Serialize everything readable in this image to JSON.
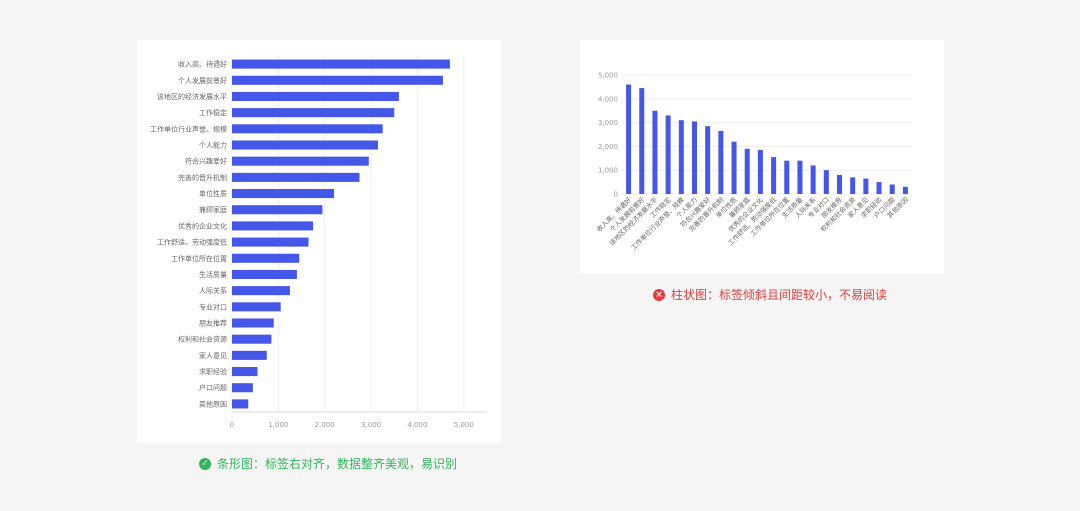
{
  "chart_data": [
    {
      "type": "bar",
      "orientation": "horizontal",
      "categories": [
        "收入高、待遇好",
        "个人发展前景好",
        "该地区的经济发展水平",
        "工作稳定",
        "工作单位行业声誉、规模",
        "个人能力",
        "符合兴趣爱好",
        "完善的晋升机制",
        "单位性质",
        "兼顾家庭",
        "优秀的企业文化",
        "工作舒适、劳动强度低",
        "工作单位所在位置",
        "生活质量",
        "人际关系",
        "专业对口",
        "朋友推荐",
        "权利和社会资源",
        "家人意见",
        "求职经验",
        "户口问题",
        "其他原因"
      ],
      "values": [
        4700,
        4550,
        3600,
        3500,
        3250,
        3150,
        2950,
        2750,
        2200,
        1950,
        1750,
        1650,
        1450,
        1400,
        1250,
        1050,
        900,
        850,
        750,
        550,
        450,
        350
      ],
      "xlim": [
        0,
        5500
      ],
      "xticks": [
        "0",
        "1,000",
        "2,000",
        "3,000",
        "4,000",
        "5,000"
      ],
      "color": "#4557e8",
      "grid": true
    },
    {
      "type": "bar",
      "orientation": "vertical",
      "categories": [
        "收入高、待遇好",
        "个人发展前景好",
        "该地区的经济发展水平",
        "工作稳定",
        "工作单位行业声誉、规模",
        "个人能力",
        "符合兴趣爱好",
        "完善的晋升机制",
        "单位性质",
        "兼顾家庭",
        "优秀的企业文化",
        "工作舒适、劳动强度低",
        "工作单位所在位置",
        "生活质量",
        "人际关系",
        "专业对口",
        "朋友推荐",
        "权利和社会资源",
        "家人意见",
        "求职经验",
        "户口问题",
        "其他原因"
      ],
      "values": [
        4600,
        4450,
        3500,
        3300,
        3100,
        3050,
        2850,
        2650,
        2200,
        1900,
        1850,
        1550,
        1400,
        1400,
        1200,
        1000,
        800,
        700,
        650,
        500,
        400,
        300
      ],
      "ylim": [
        0,
        5000
      ],
      "yticks": [
        "0",
        "1,000",
        "2,000",
        "3,000",
        "4,000",
        "5,000"
      ],
      "color": "#4557e8",
      "grid": true
    }
  ],
  "captions": {
    "good": "条形图：标签右对齐，数据整齐美观，易识别",
    "bad": "柱状图：标签倾斜且间距较小，不易阅读",
    "good_icon": "check-circle-icon",
    "bad_icon": "close-circle-icon",
    "good_color": "#2fb65a",
    "bad_color": "#e83a3a"
  }
}
